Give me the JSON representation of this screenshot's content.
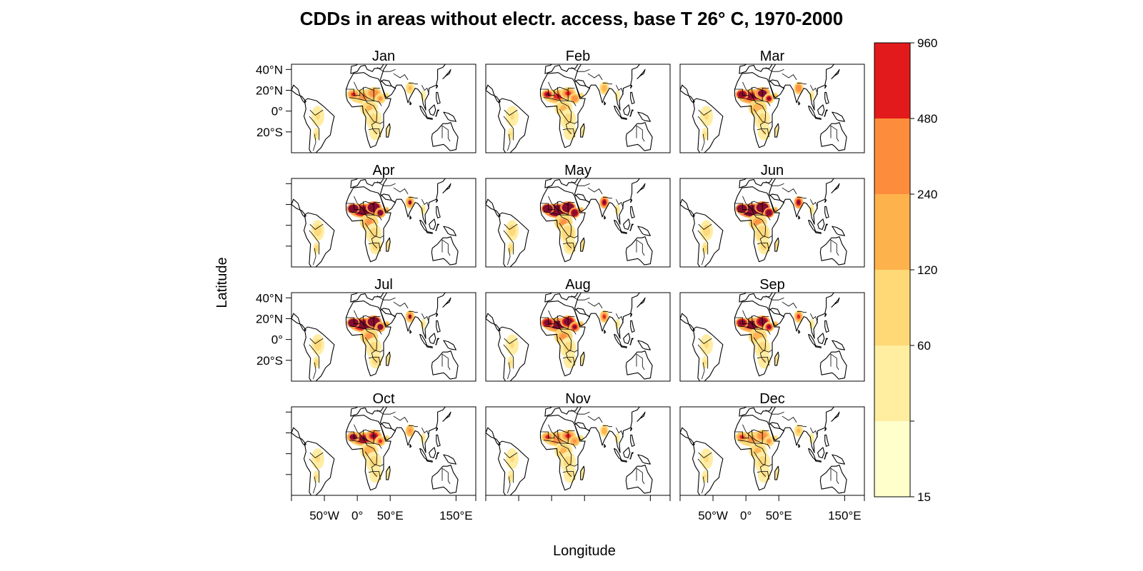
{
  "title": "CDDs in areas without electr. access, base T 26° C, 1970-2000",
  "xlabel": "Longitude",
  "ylabel": "Latitude",
  "x_ticks": [
    {
      "value": -50,
      "label": "50°W"
    },
    {
      "value": 0,
      "label": "0°"
    },
    {
      "value": 50,
      "label": "50°E"
    },
    {
      "value": 150,
      "label": "150°E"
    }
  ],
  "y_ticks": [
    {
      "value": 40,
      "label": "40°N"
    },
    {
      "value": 20,
      "label": "20°N"
    },
    {
      "value": 0,
      "label": "0°"
    },
    {
      "value": -20,
      "label": "20°S"
    }
  ],
  "lon_range": [
    -100,
    180
  ],
  "lat_range": [
    -40,
    45
  ],
  "panels": [
    {
      "label": "Jan",
      "intensity": 0.35
    },
    {
      "label": "Feb",
      "intensity": 0.45
    },
    {
      "label": "Mar",
      "intensity": 0.6
    },
    {
      "label": "Apr",
      "intensity": 0.8
    },
    {
      "label": "May",
      "intensity": 0.9
    },
    {
      "label": "Jun",
      "intensity": 0.9
    },
    {
      "label": "Jul",
      "intensity": 0.8
    },
    {
      "label": "Aug",
      "intensity": 0.7
    },
    {
      "label": "Sep",
      "intensity": 0.65
    },
    {
      "label": "Oct",
      "intensity": 0.55
    },
    {
      "label": "Nov",
      "intensity": 0.4
    },
    {
      "label": "Dec",
      "intensity": 0.35
    }
  ],
  "colorbar": {
    "breaks": [
      15,
      30,
      60,
      120,
      240,
      480,
      960
    ],
    "tick_labels": [
      "15",
      "60",
      "120",
      "240",
      "480",
      "960"
    ],
    "tick_values": [
      15,
      60,
      120,
      240,
      480,
      960
    ],
    "colors": [
      "#FFFFCC",
      "#FFEDA0",
      "#FED976",
      "#FEB24C",
      "#FD8D3C",
      "#E31A1C",
      "#800026"
    ]
  }
}
